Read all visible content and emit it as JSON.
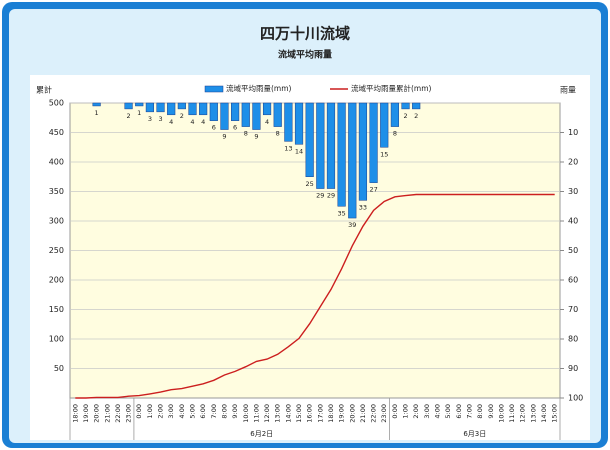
{
  "chart_data": {
    "type": "bar_line_dual",
    "title": "四万十川流域",
    "subtitle": "流域平均雨量",
    "y_label": "累計",
    "y2_label": "雨量",
    "category_groups": [
      {
        "label": null,
        "categories": [
          "18:00",
          "19:00",
          "20:00",
          "21:00",
          "22:00",
          "23:00"
        ]
      },
      {
        "label": "6月2日",
        "categories": [
          "0:00",
          "1:00",
          "2:00",
          "3:00",
          "4:00",
          "5:00",
          "6:00",
          "7:00",
          "8:00",
          "9:00",
          "10:00",
          "11:00",
          "12:00",
          "13:00",
          "14:00",
          "15:00",
          "16:00",
          "17:00",
          "18:00",
          "19:00",
          "20:00",
          "21:00",
          "22:00",
          "23:00"
        ]
      },
      {
        "label": "6月3日",
        "categories": [
          "0:00",
          "1:00",
          "2:00",
          "3:00",
          "4:00",
          "5:00",
          "6:00",
          "7:00",
          "8:00",
          "9:00",
          "10:00",
          "11:00",
          "12:00",
          "13:00",
          "14:00",
          "15:00"
        ]
      }
    ],
    "series": [
      {
        "name": "流域平均雨量(mm)",
        "type": "bar",
        "axis": "y2",
        "color": "#1e8fe8",
        "edge": "#1a3f8f",
        "values": [
          0,
          0,
          1,
          0,
          0,
          2,
          1,
          3,
          3,
          4,
          2,
          4,
          4,
          6,
          9,
          6,
          8,
          9,
          4,
          8,
          13,
          14,
          25,
          29,
          29,
          35,
          39,
          33,
          27,
          15,
          8,
          2,
          2,
          0,
          0,
          0,
          0,
          0,
          0,
          0,
          0,
          0,
          0,
          0,
          0,
          0
        ]
      },
      {
        "name": "流域平均雨量累計(mm)",
        "type": "line",
        "axis": "y",
        "color": "#cc1f1f",
        "values": [
          0,
          0,
          1,
          1,
          1,
          3,
          4,
          7,
          10,
          14,
          16,
          20,
          24,
          30,
          39,
          45,
          53,
          62,
          66,
          74,
          87,
          101,
          126,
          155,
          184,
          219,
          258,
          291,
          318,
          333,
          341,
          343,
          345,
          345,
          345,
          345,
          345,
          345,
          345,
          345,
          345,
          345,
          345,
          345,
          345,
          345
        ]
      }
    ],
    "ylim": [
      0,
      500
    ],
    "yticks": [
      50,
      100,
      150,
      200,
      250,
      300,
      350,
      400,
      450,
      500
    ],
    "y2lim": [
      0,
      100
    ],
    "y2_inverted": true,
    "y2ticks": [
      10,
      20,
      30,
      40,
      50,
      60,
      70,
      80,
      90,
      100
    ],
    "grid": true
  }
}
